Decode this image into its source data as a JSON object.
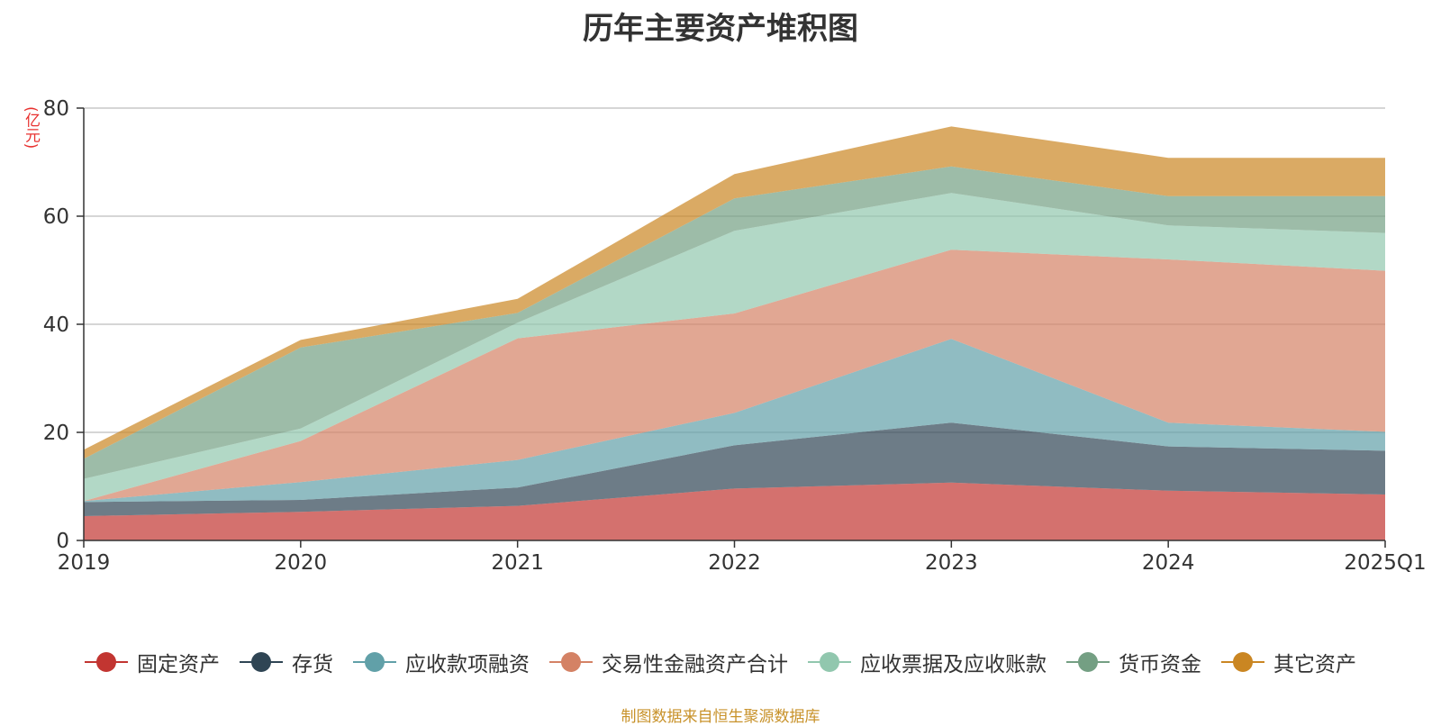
{
  "chart_data": {
    "type": "area",
    "stacked": true,
    "title": "历年主要资产堆积图",
    "y_unit": "(亿元)",
    "categories": [
      "2019",
      "2020",
      "2021",
      "2022",
      "2023",
      "2024",
      "2025Q1"
    ],
    "ylim": [
      0,
      80
    ],
    "y_ticks": [
      "0",
      "20",
      "40",
      "60",
      "80"
    ],
    "grid": true,
    "legend_position": "bottom",
    "series": [
      {
        "name": "固定资产",
        "color": "#c23531",
        "values": [
          4.5,
          5.3,
          6.4,
          9.6,
          10.7,
          9.2,
          8.5
        ]
      },
      {
        "name": "存货",
        "color": "#2f4554",
        "values": [
          2.6,
          2.2,
          3.4,
          8.0,
          11.1,
          8.2,
          8.1
        ]
      },
      {
        "name": "应收款项融资",
        "color": "#61a0a8",
        "values": [
          0.2,
          3.3,
          5.1,
          6.0,
          15.5,
          4.4,
          3.5
        ]
      },
      {
        "name": "交易性金融资产合计",
        "color": "#d48265",
        "values": [
          0.0,
          7.6,
          22.5,
          18.4,
          16.5,
          30.2,
          29.8
        ]
      },
      {
        "name": "应收票据及应收账款",
        "color": "#91c7ae",
        "values": [
          4.1,
          2.3,
          2.9,
          15.3,
          10.5,
          6.3,
          7.0
        ]
      },
      {
        "name": "货币资金",
        "color": "#749f83",
        "values": [
          3.7,
          15.0,
          1.8,
          6.0,
          4.9,
          5.4,
          6.8
        ]
      },
      {
        "name": "其它资产",
        "color": "#ca8622",
        "values": [
          1.7,
          1.4,
          2.6,
          4.5,
          7.4,
          7.1,
          7.1
        ]
      }
    ]
  },
  "source_note": "制图数据来自恒生聚源数据库"
}
